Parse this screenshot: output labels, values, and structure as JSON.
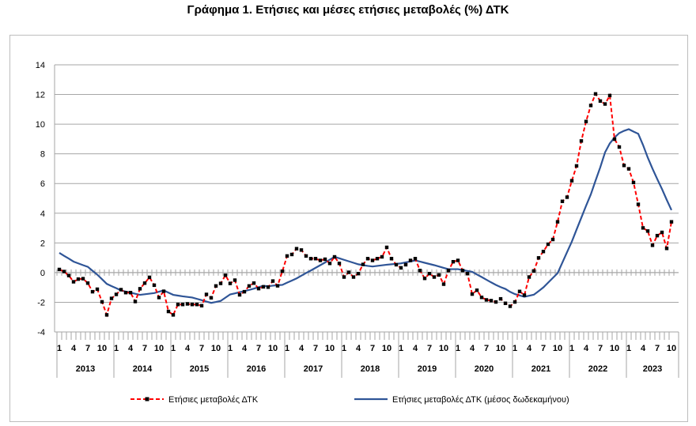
{
  "chart_data": {
    "type": "line",
    "title": "Γράφημα 1. Ετήσιες και μέσες ετήσιες μεταβολές (%) ΔΤΚ",
    "xlabel": "",
    "ylabel": "",
    "ylim": [
      -4,
      14
    ],
    "yticks": [
      -4,
      -2,
      0,
      2,
      4,
      6,
      8,
      10,
      12,
      14
    ],
    "grid": true,
    "legend_position": "bottom",
    "years": [
      "2013",
      "2014",
      "2015",
      "2016",
      "2017",
      "2018",
      "2019",
      "2020",
      "2021",
      "2022",
      "2023"
    ],
    "month_tick_labels": [
      "1",
      "4",
      "7",
      "10"
    ],
    "x_start": "2013-01",
    "x_end": "2023-10",
    "series": [
      {
        "name": "Ετήσιες μεταβολές ΔΤΚ",
        "color": "#ff0000",
        "marker_color": "#000000",
        "style": "dashed-markers",
        "values": [
          0.21,
          0.07,
          -0.2,
          -0.62,
          -0.44,
          -0.41,
          -0.71,
          -1.29,
          -1.12,
          -1.97,
          -2.85,
          -1.74,
          -1.47,
          -1.15,
          -1.35,
          -1.35,
          -1.95,
          -1.09,
          -0.71,
          -0.32,
          -0.85,
          -1.68,
          -1.26,
          -2.62,
          -2.85,
          -2.15,
          -2.15,
          -2.11,
          -2.15,
          -2.15,
          -2.23,
          -1.47,
          -1.7,
          -0.9,
          -0.73,
          -0.18,
          -0.73,
          -0.51,
          -1.5,
          -1.29,
          -0.9,
          -0.71,
          -1.08,
          -0.96,
          -0.98,
          -0.57,
          -0.89,
          0.09,
          1.12,
          1.22,
          1.61,
          1.52,
          1.12,
          0.94,
          0.94,
          0.82,
          0.9,
          0.62,
          1.06,
          0.62,
          -0.3,
          0.02,
          -0.3,
          -0.07,
          0.55,
          0.94,
          0.82,
          0.94,
          1.06,
          1.7,
          0.94,
          0.53,
          0.32,
          0.53,
          0.82,
          0.94,
          0.14,
          -0.39,
          -0.07,
          -0.3,
          -0.16,
          -0.78,
          0.14,
          0.73,
          0.82,
          0.14,
          -0.07,
          -1.45,
          -1.19,
          -1.67,
          -1.84,
          -1.89,
          -1.98,
          -1.77,
          -2.07,
          -2.27,
          -1.98,
          -1.27,
          -1.52,
          -0.3,
          0.11,
          0.99,
          1.42,
          1.91,
          2.23,
          3.42,
          4.8,
          5.08,
          6.19,
          7.19,
          8.87,
          10.18,
          11.26,
          12.04,
          11.56,
          11.36,
          11.93,
          8.99,
          8.46,
          7.22,
          6.99,
          6.07,
          4.6,
          3.01,
          2.8,
          1.84,
          2.49,
          2.71,
          1.63,
          3.42
        ]
      },
      {
        "name": "Ετήσιες μεταβολές ΔΤΚ (μέσος δωδεκαμήνου)",
        "color": "#2f5597",
        "style": "solid",
        "values": [
          1.33,
          1.13,
          0.94,
          0.74,
          0.62,
          0.5,
          0.39,
          0.12,
          -0.14,
          -0.45,
          -0.76,
          -0.91,
          -1.05,
          -1.2,
          -1.28,
          -1.35,
          -1.43,
          -1.5,
          -1.46,
          -1.42,
          -1.38,
          -1.29,
          -1.2,
          -1.35,
          -1.5,
          -1.55,
          -1.6,
          -1.64,
          -1.68,
          -1.77,
          -1.86,
          -1.95,
          -2.04,
          -1.98,
          -1.91,
          -1.69,
          -1.47,
          -1.4,
          -1.32,
          -1.25,
          -1.17,
          -1.08,
          -0.98,
          -0.89,
          -0.92,
          -0.88,
          -0.85,
          -0.83,
          -0.68,
          -0.54,
          -0.39,
          -0.21,
          -0.03,
          0.14,
          0.32,
          0.5,
          0.68,
          0.87,
          1.06,
          0.96,
          0.86,
          0.76,
          0.66,
          0.56,
          0.5,
          0.45,
          0.41,
          0.45,
          0.49,
          0.53,
          0.56,
          0.59,
          0.62,
          0.69,
          0.75,
          0.82,
          0.74,
          0.66,
          0.58,
          0.5,
          0.41,
          0.32,
          0.23,
          0.23,
          0.23,
          0.17,
          0.11,
          0.05,
          -0.13,
          -0.3,
          -0.48,
          -0.66,
          -0.83,
          -0.98,
          -1.1,
          -1.3,
          -1.45,
          -1.54,
          -1.63,
          -1.56,
          -1.49,
          -1.25,
          -1,
          -0.68,
          -0.36,
          -0.04,
          0.67,
          1.38,
          2.09,
          2.9,
          3.7,
          4.5,
          5.27,
          6.2,
          7.1,
          8.1,
          8.7,
          9.1,
          9.4,
          9.55,
          9.66,
          9.5,
          9.35,
          8.6,
          7.75,
          7,
          6.3,
          5.63,
          4.9,
          4.21
        ]
      }
    ]
  }
}
